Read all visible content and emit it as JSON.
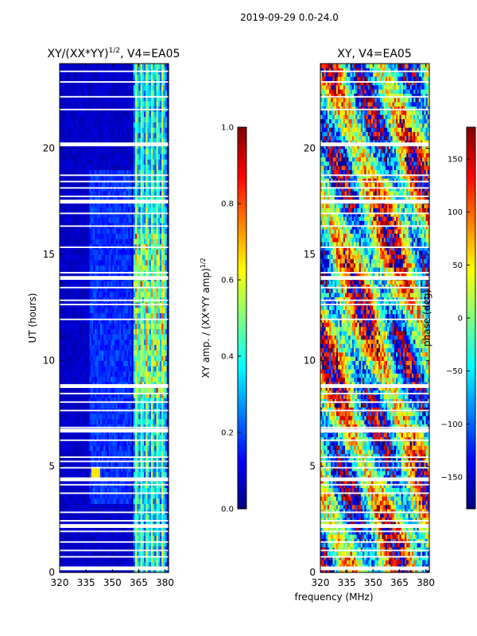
{
  "suptitle": "2019-09-29 0.0-24.0",
  "xlabel": "frequency (MHz)",
  "colors": {
    "jet": [
      "#00007f",
      "#0000ff",
      "#007fff",
      "#00ffff",
      "#7fff7f",
      "#ffff00",
      "#ff7f00",
      "#ff0000",
      "#7f0000"
    ],
    "gap": "#ffffff",
    "axis": "#000000"
  },
  "chart_data": [
    {
      "type": "heatmap",
      "title": "XY/(XX*YY)",
      "title_sup": "1/2",
      "title_suffix": ", V4=EA05",
      "xlabel": "",
      "ylabel": "UT (hours)",
      "xlim": [
        320,
        382
      ],
      "ylim": [
        0,
        24
      ],
      "xticks": [
        320,
        335,
        350,
        365,
        380
      ],
      "yticks": [
        0,
        5,
        10,
        15,
        20
      ],
      "colorbar": {
        "label": "XY amp. / (XX*YY amp)",
        "label_sup": "1/2",
        "range": [
          0.0,
          1.0
        ],
        "ticks": [
          "0.0",
          "0.2",
          "0.4",
          "0.6",
          "0.8",
          "1.0"
        ]
      },
      "description_values": "normalized cross-correlation amplitude, mostly 0.0-0.2 below 360 MHz, strong vertical RFI stripes 0.3-0.7 at 362-380 MHz"
    },
    {
      "type": "heatmap",
      "title": "XY, V4=EA05",
      "xlabel": "",
      "ylabel": "",
      "xlim": [
        320,
        382
      ],
      "ylim": [
        0,
        24
      ],
      "xticks": [
        320,
        335,
        350,
        365,
        380
      ],
      "yticks": [
        0,
        5,
        10,
        15,
        20
      ],
      "colorbar": {
        "label": "phase (deg)",
        "range": [
          -180,
          180
        ],
        "ticks": [
          "150",
          "100",
          "50",
          "0",
          "−50",
          "−100",
          "−150"
        ],
        "tick_values": [
          150,
          100,
          50,
          0,
          -50,
          -100,
          -150
        ]
      },
      "description_values": "cross-correlation phase, noisy across -180 to 180 degrees"
    }
  ]
}
